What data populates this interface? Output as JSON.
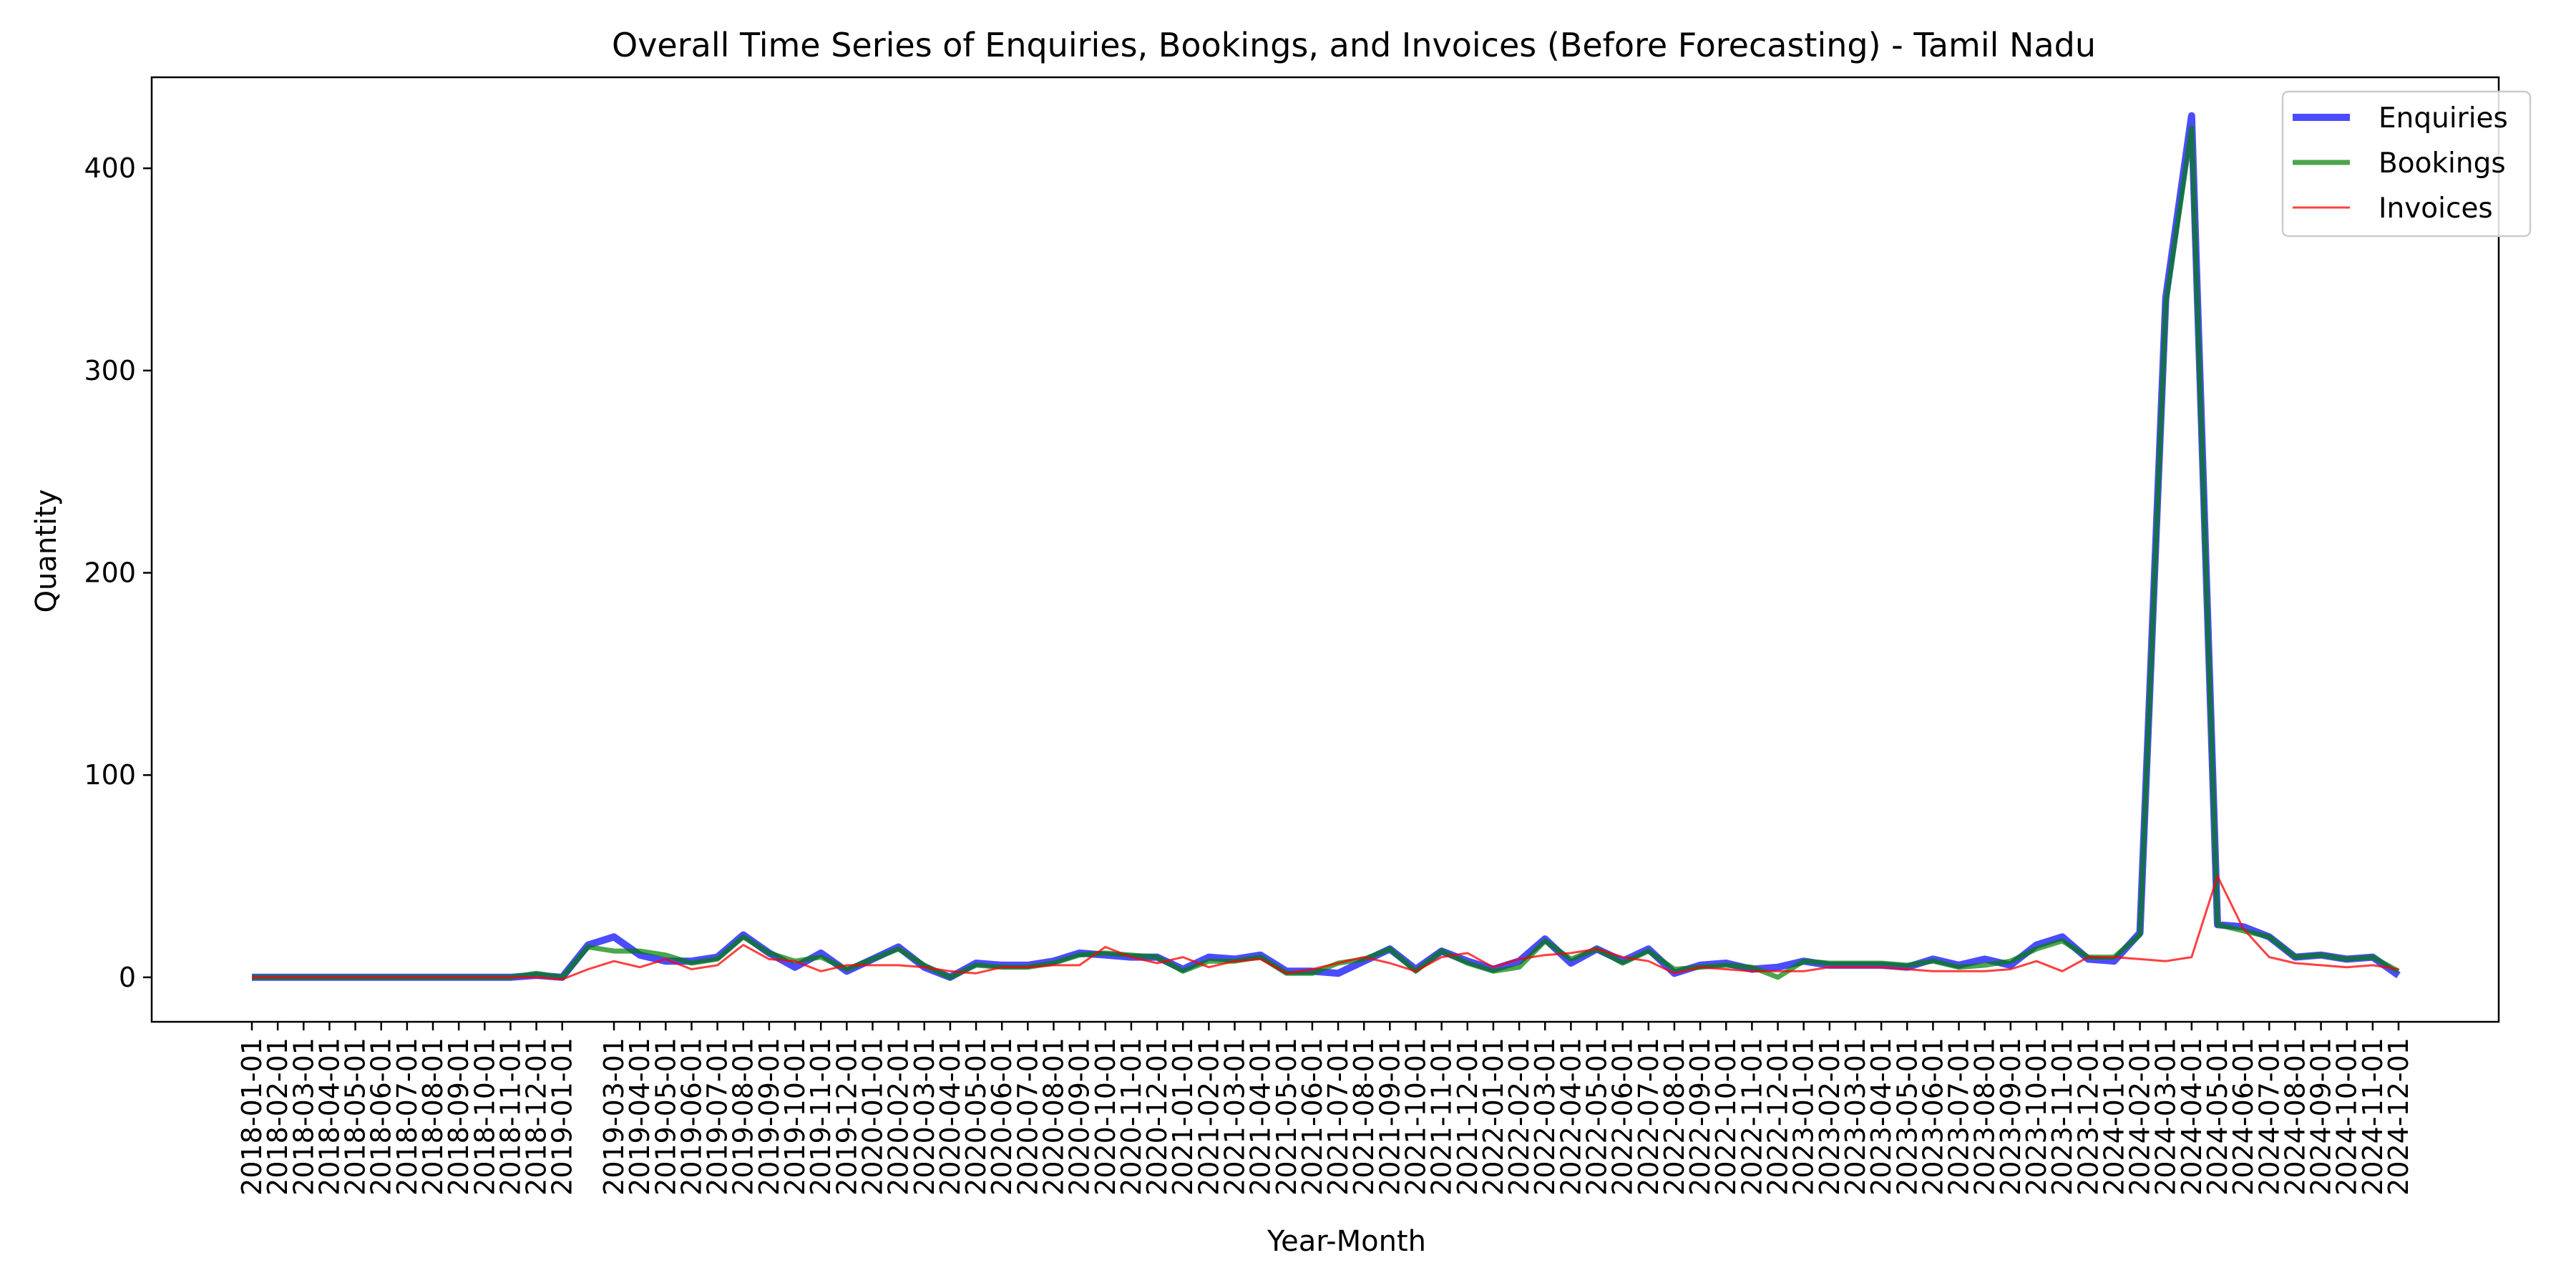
{
  "chart_data": {
    "type": "line",
    "title": "Overall Time Series of Enquiries, Bookings, and Invoices (Before Forecasting) - Tamil Nadu",
    "xlabel": "Year-Month",
    "ylabel": "Quantity",
    "ylim": [
      -22,
      445
    ],
    "yticks": [
      0,
      100,
      200,
      300,
      400
    ],
    "grid": false,
    "legend_position": "top-right",
    "x": [
      "2018-01-01",
      "2018-02-01",
      "2018-03-01",
      "2018-04-01",
      "2018-05-01",
      "2018-06-01",
      "2018-07-01",
      "2018-08-01",
      "2018-09-01",
      "2018-10-01",
      "2018-11-01",
      "2018-12-01",
      "2019-01-01",
      "2019-02-01",
      "2019-03-01",
      "2019-04-01",
      "2019-05-01",
      "2019-06-01",
      "2019-07-01",
      "2019-08-01",
      "2019-09-01",
      "2019-10-01",
      "2019-11-01",
      "2019-12-01",
      "2020-01-01",
      "2020-02-01",
      "2020-03-01",
      "2020-04-01",
      "2020-05-01",
      "2020-06-01",
      "2020-07-01",
      "2020-08-01",
      "2020-09-01",
      "2020-10-01",
      "2020-11-01",
      "2020-12-01",
      "2021-01-01",
      "2021-02-01",
      "2021-03-01",
      "2021-04-01",
      "2021-05-01",
      "2021-06-01",
      "2021-07-01",
      "2021-08-01",
      "2021-09-01",
      "2021-10-01",
      "2021-11-01",
      "2021-12-01",
      "2022-01-01",
      "2022-02-01",
      "2022-03-01",
      "2022-04-01",
      "2022-05-01",
      "2022-06-01",
      "2022-07-01",
      "2022-08-01",
      "2022-09-01",
      "2022-10-01",
      "2022-11-01",
      "2022-12-01",
      "2023-01-01",
      "2023-02-01",
      "2023-03-01",
      "2023-04-01",
      "2023-05-01",
      "2023-06-01",
      "2023-07-01",
      "2023-08-01",
      "2023-09-01",
      "2023-10-01",
      "2023-11-01",
      "2023-12-01",
      "2024-01-01",
      "2024-02-01",
      "2024-03-01",
      "2024-04-01",
      "2024-05-01",
      "2024-06-01",
      "2024-07-01",
      "2024-08-01",
      "2024-09-01",
      "2024-10-01",
      "2024-11-01",
      "2024-12-01"
    ],
    "xticks": [
      "2018-01-01",
      "2018-02-01",
      "2018-03-01",
      "2018-04-01",
      "2018-05-01",
      "2018-06-01",
      "2018-07-01",
      "2018-08-01",
      "2018-09-01",
      "2018-10-01",
      "2018-11-01",
      "2018-12-01",
      "2019-01-01",
      "2019-03-01",
      "2019-04-01",
      "2019-05-01",
      "2019-06-01",
      "2019-07-01",
      "2019-08-01",
      "2019-09-01",
      "2019-10-01",
      "2019-11-01",
      "2019-12-01",
      "2020-01-01",
      "2020-02-01",
      "2020-03-01",
      "2020-04-01",
      "2020-05-01",
      "2020-06-01",
      "2020-07-01",
      "2020-08-01",
      "2020-09-01",
      "2020-10-01",
      "2020-11-01",
      "2020-12-01",
      "2021-01-01",
      "2021-02-01",
      "2021-03-01",
      "2021-04-01",
      "2021-05-01",
      "2021-06-01",
      "2021-07-01",
      "2021-08-01",
      "2021-09-01",
      "2021-10-01",
      "2021-11-01",
      "2021-12-01",
      "2022-01-01",
      "2022-02-01",
      "2022-03-01",
      "2022-04-01",
      "2022-05-01",
      "2022-06-01",
      "2022-07-01",
      "2022-08-01",
      "2022-09-01",
      "2022-10-01",
      "2022-11-01",
      "2022-12-01",
      "2023-01-01",
      "2023-02-01",
      "2023-03-01",
      "2023-04-01",
      "2023-05-01",
      "2023-06-01",
      "2023-07-01",
      "2023-08-01",
      "2023-09-01",
      "2023-10-01",
      "2023-11-01",
      "2023-12-01",
      "2024-01-01",
      "2024-02-01",
      "2024-03-01",
      "2024-04-01",
      "2024-05-01",
      "2024-06-01",
      "2024-07-01",
      "2024-08-01",
      "2024-09-01",
      "2024-10-01",
      "2024-11-01",
      "2024-12-01"
    ],
    "series": [
      {
        "name": "Enquiries",
        "color": "#0000ff",
        "values": [
          0,
          0,
          0,
          0,
          0,
          0,
          0,
          0,
          0,
          0,
          0,
          1,
          0,
          16,
          20,
          11,
          8,
          8,
          10,
          21,
          12,
          5,
          12,
          3,
          9,
          15,
          5,
          0,
          7,
          6,
          6,
          8,
          12,
          11,
          10,
          10,
          4,
          10,
          9,
          11,
          3,
          3,
          2,
          8,
          14,
          4,
          13,
          8,
          4,
          8,
          19,
          7,
          14,
          8,
          14,
          2,
          6,
          7,
          4,
          5,
          8,
          6,
          6,
          6,
          5,
          9,
          6,
          9,
          6,
          16,
          20,
          9,
          8,
          22,
          336,
          426,
          26,
          25,
          20,
          10,
          11,
          9,
          10,
          1
        ]
      },
      {
        "name": "Bookings",
        "color": "#008000",
        "values": [
          0,
          0,
          0,
          0,
          0,
          0,
          0,
          0,
          0,
          0,
          0,
          2,
          0,
          15,
          13,
          13,
          11,
          7,
          9,
          20,
          12,
          8,
          10,
          4,
          9,
          14,
          6,
          0,
          6,
          5,
          5,
          7,
          11,
          12,
          11,
          10,
          3,
          8,
          8,
          10,
          2,
          2,
          7,
          9,
          14,
          3,
          13,
          7,
          3,
          5,
          18,
          9,
          14,
          7,
          13,
          4,
          5,
          6,
          5,
          0,
          8,
          7,
          7,
          7,
          6,
          8,
          5,
          6,
          8,
          14,
          18,
          10,
          10,
          21,
          333,
          420,
          26,
          23,
          20,
          10,
          11,
          9,
          10,
          3
        ]
      },
      {
        "name": "Invoices",
        "color": "#ff0000",
        "values": [
          0,
          0,
          0,
          0,
          0,
          0,
          0,
          0,
          0,
          0,
          0,
          0,
          -1,
          4,
          8,
          5,
          9,
          4,
          6,
          16,
          9,
          8,
          3,
          6,
          6,
          6,
          5,
          3,
          2,
          5,
          5,
          6,
          6,
          15,
          10,
          7,
          10,
          5,
          8,
          9,
          2,
          4,
          7,
          10,
          7,
          3,
          10,
          12,
          5,
          9,
          11,
          12,
          14,
          10,
          8,
          2,
          5,
          4,
          3,
          3,
          3,
          5,
          5,
          5,
          4,
          3,
          3,
          3,
          4,
          8,
          3,
          10,
          10,
          9,
          8,
          10,
          50,
          24,
          10,
          7,
          6,
          5,
          6,
          4
        ]
      }
    ]
  }
}
